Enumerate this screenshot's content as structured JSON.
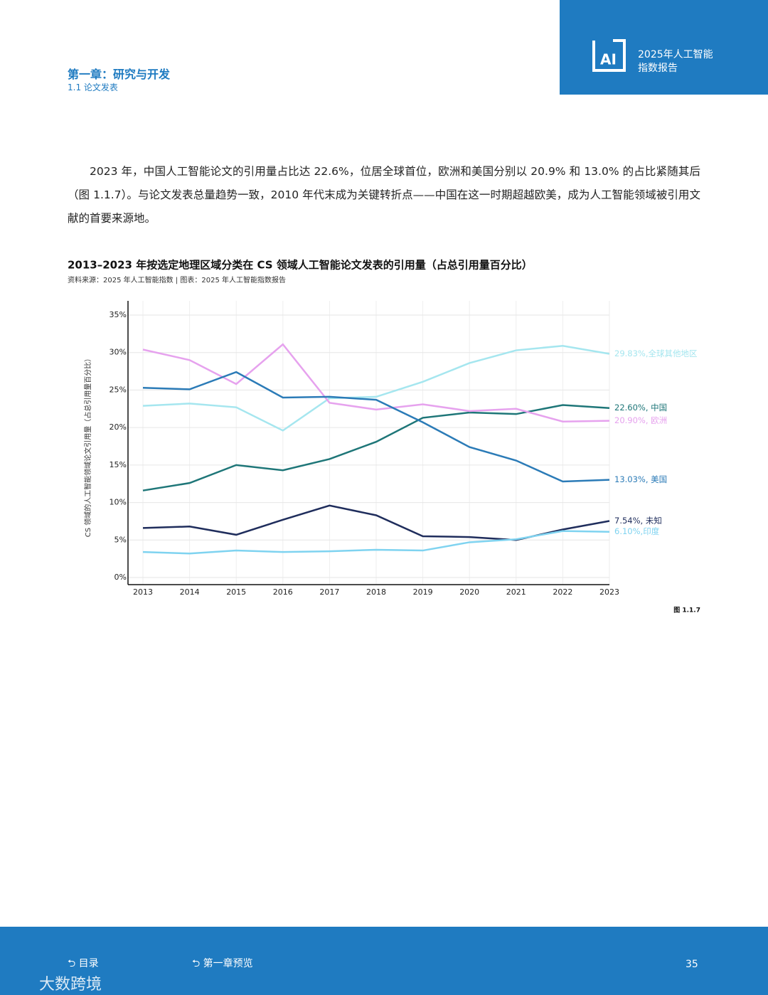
{
  "header": {
    "chapter": "第一章：研究与开发",
    "section": "1.1 论文发表",
    "report": "2025年人工智能",
    "report2": "指数报告"
  },
  "paragraph": "2023 年，中国人工智能论文的引用量占比达 22.6%，位居全球首位，欧洲和美国分别以 20.9% 和 13.0% 的占比紧随其后（图 1.1.7）。与论文发表总量趋势一致，2010 年代末成为关键转折点——中国在这一时期超越欧美，成为人工智能领域被引用文献的首要来源地。",
  "chart_data": {
    "type": "line",
    "title": "2013–2023 年按选定地理区域分类在 CS 领域人工智能论文发表的引用量（占总引用量百分比）",
    "subtitle": "资料来源：2025 年人工智能指数 | 图表：2025 年人工智能指数报告",
    "y_label": "CS 领域的人工智能领域论文引用量（占总引用量百分比）",
    "figure": "图 1.1.7",
    "grid": true,
    "categories": [
      "2013",
      "2014",
      "2015",
      "2016",
      "2017",
      "2018",
      "2019",
      "2020",
      "2021",
      "2022",
      "2023"
    ],
    "ylim": [
      0,
      35
    ],
    "yticks": [
      {
        "value": 0,
        "label": "0%"
      },
      {
        "value": 5,
        "label": "5%"
      },
      {
        "value": 10,
        "label": "10%"
      },
      {
        "value": 15,
        "label": "15%"
      },
      {
        "value": 20,
        "label": "20%"
      },
      {
        "value": 25,
        "label": "25%"
      },
      {
        "value": 30,
        "label": "30%"
      },
      {
        "value": 35,
        "label": "35%"
      }
    ],
    "series": [
      {
        "name": "全球其他地区",
        "color": "#a5e6ef",
        "values": [
          22.9,
          23.2,
          22.7,
          19.6,
          23.9,
          24.1,
          26.1,
          28.6,
          30.3,
          30.9,
          29.83
        ],
        "end_label": "29.83%,全球其他地区"
      },
      {
        "name": "中国",
        "color": "#1e7678",
        "values": [
          11.6,
          12.6,
          15.0,
          14.3,
          15.8,
          18.1,
          21.3,
          22.0,
          21.8,
          23.0,
          22.6
        ],
        "end_label": "22.60%, 中国"
      },
      {
        "name": "欧洲",
        "color": "#e6a2ee",
        "values": [
          30.4,
          29.0,
          25.8,
          31.1,
          23.3,
          22.4,
          23.1,
          22.2,
          22.5,
          20.8,
          20.9
        ],
        "end_label": "20.90%, 欧洲"
      },
      {
        "name": "美国",
        "color": "#2b7bb7",
        "values": [
          25.3,
          25.1,
          27.4,
          24.0,
          24.1,
          23.7,
          20.7,
          17.4,
          15.6,
          12.8,
          13.03
        ],
        "end_label": "13.03%, 美国"
      },
      {
        "name": "未知",
        "color": "#1f2d5c",
        "values": [
          6.6,
          6.8,
          5.7,
          7.7,
          9.6,
          8.3,
          5.5,
          5.4,
          5.0,
          6.4,
          7.54
        ],
        "end_label": "7.54%, 未知"
      },
      {
        "name": "印度",
        "color": "#7fd3f0",
        "values": [
          3.4,
          3.2,
          3.6,
          3.4,
          3.5,
          3.7,
          3.6,
          4.7,
          5.1,
          6.2,
          6.1
        ],
        "end_label": "6.10%,印度"
      }
    ]
  },
  "footer": {
    "toc": "目录",
    "preview": "第一章预览",
    "page": "35",
    "watermark": "大数跨境"
  }
}
